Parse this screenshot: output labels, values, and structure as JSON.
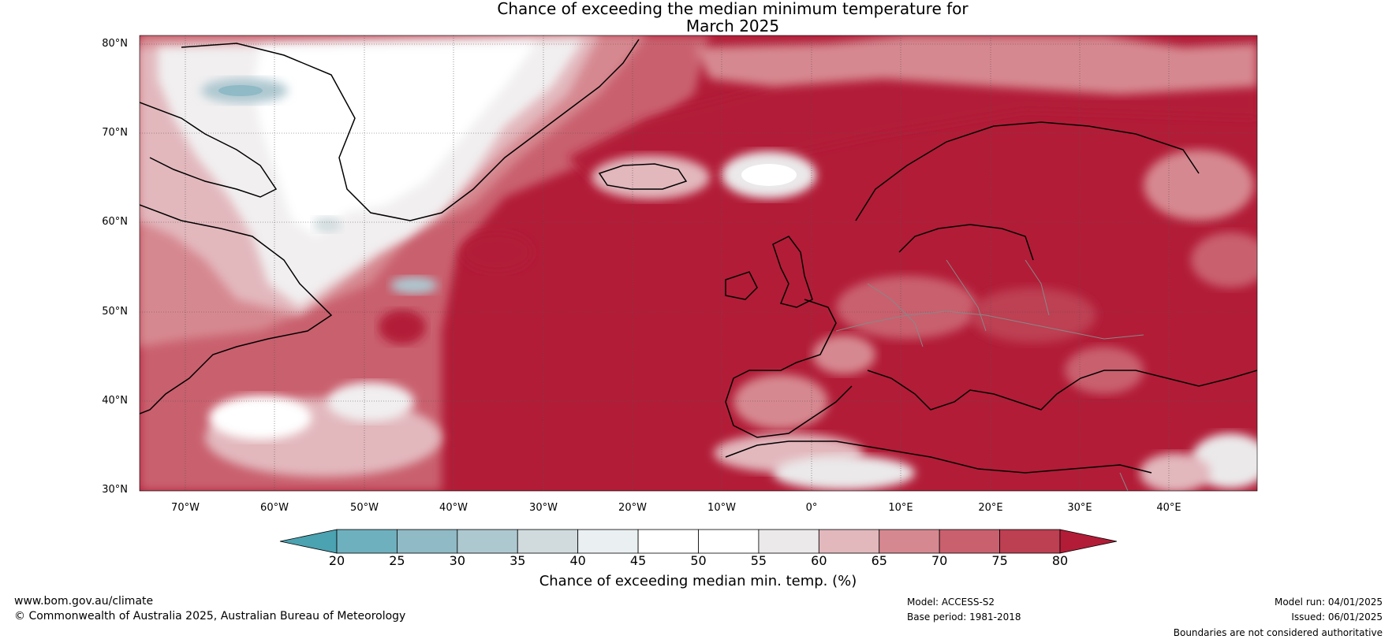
{
  "title_line1": "Chance of exceeding the median minimum temperature for",
  "title_line2": "March 2025",
  "lat_labels": [
    "80°N",
    "70°N",
    "60°N",
    "50°N",
    "40°N",
    "30°N"
  ],
  "lon_labels": [
    "70°W",
    "60°W",
    "50°W",
    "40°W",
    "30°W",
    "20°W",
    "10°W",
    "0°",
    "10°E",
    "20°E",
    "30°E",
    "40°E"
  ],
  "colorbar": {
    "label": "Chance of exceeding median min. temp. (%)",
    "ticks": [
      "20",
      "25",
      "30",
      "35",
      "40",
      "45",
      "50",
      "55",
      "60",
      "65",
      "70",
      "75",
      "80"
    ],
    "colors": [
      "#4ba2b1",
      "#6eb0be",
      "#8fbac6",
      "#aec8d0",
      "#d1dbde",
      "#eaf0f2",
      "#ffffff",
      "#ffffff",
      "#ebe9ea",
      "#e2b8bd",
      "#d68890",
      "#c9606e",
      "#bd3f52",
      "#b21c37"
    ]
  },
  "colors": {
    "high": "#b21c37",
    "mid_high": "#c9606e",
    "mid": "#e2b8bd",
    "neutral": "#f1eff0",
    "low": "#aec8d0",
    "coast": "#000000",
    "border": "#808080"
  },
  "footer": {
    "website": "www.bom.gov.au/climate",
    "copyright": "© Commonwealth of Australia 2025, Australian Bureau of Meteorology",
    "model": "Model: ACCESS-S2",
    "base_period": "Base period: 1981-2018",
    "model_run": "Model run: 04/01/2025",
    "issued": "Issued: 06/01/2025",
    "disclaimer": "Boundaries are not considered authoritative"
  }
}
